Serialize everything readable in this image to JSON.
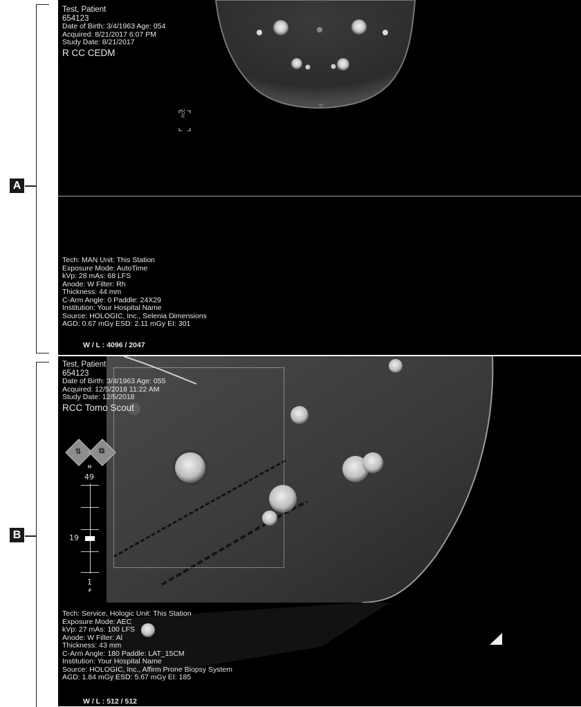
{
  "callouts": {
    "a": "A",
    "b": "B"
  },
  "panel_a": {
    "patient_name": "Test, Patient",
    "patient_id": "654123",
    "dob_line": "Date of Birth: 3/4/1963   Age: 054",
    "acquired_line": "Acquired: 8/21/2017 6:07 PM",
    "study_line": "Study Date: 8/21/2017",
    "view": "R CC CEDM",
    "marker": "RCC",
    "tech_lines": [
      "Tech: MAN    Unit: This Station",
      "Exposure Mode: AutoTime",
      "kVp: 28   mAs: 68   LFS",
      "Anode: W   Filter: Rh",
      "Thickness: 44 mm",
      "C-Arm Angle: 0   Paddle: 24X29",
      "Institution: Your Hospital Name",
      "Source: HOLOGIC, Inc.,    Selenia Dimensions",
      "AGD: 0.67 mGy   ESD: 2.11 mGy   EI: 301"
    ],
    "wl": "W / L : 4096 / 2047"
  },
  "panel_b": {
    "patient_name": "Test, Patient",
    "patient_id": "654123",
    "dob_line": "Date of Birth: 3/4/1963   Age: 055",
    "acquired_line": "Acquired: 12/5/2018 11:22 AM",
    "study_line": "Study Date: 12/5/2018",
    "view": "RCC Tomo Scout",
    "slider": {
      "top_label": "H",
      "max": "49",
      "current": "19",
      "min": "1",
      "bottom_label": "F",
      "position": 0.375
    },
    "tech_lines": [
      "Tech: Service, Hologic   Unit: This Station",
      "Exposure Mode: AEC",
      "kVp: 27   mAs: 100   LFS",
      "Anode: W   Filter: Al",
      "Thickness: 43 mm",
      "C-Arm Angle: 180   Paddle: LAT_15CM",
      "Institution: Your Hospital Name",
      "Source: HOLOGIC, Inc.,    Affirm Prone Biopsy System",
      "AGD: 1.84 mGy   ESD: 5.67 mGy   EI: 185"
    ],
    "wl": "W / L : 512 / 512"
  }
}
